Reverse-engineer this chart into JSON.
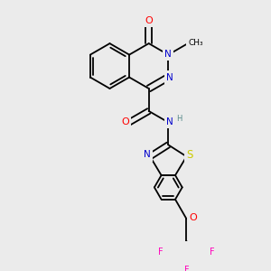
{
  "background_color": "#ebebeb",
  "bond_color": "#000000",
  "atom_colors": {
    "N": "#0000cc",
    "O": "#ff0000",
    "S": "#cccc00",
    "F": "#ff00bb",
    "H": "#558888",
    "C": "#000000"
  },
  "lw": 1.3,
  "fs": 7.0
}
